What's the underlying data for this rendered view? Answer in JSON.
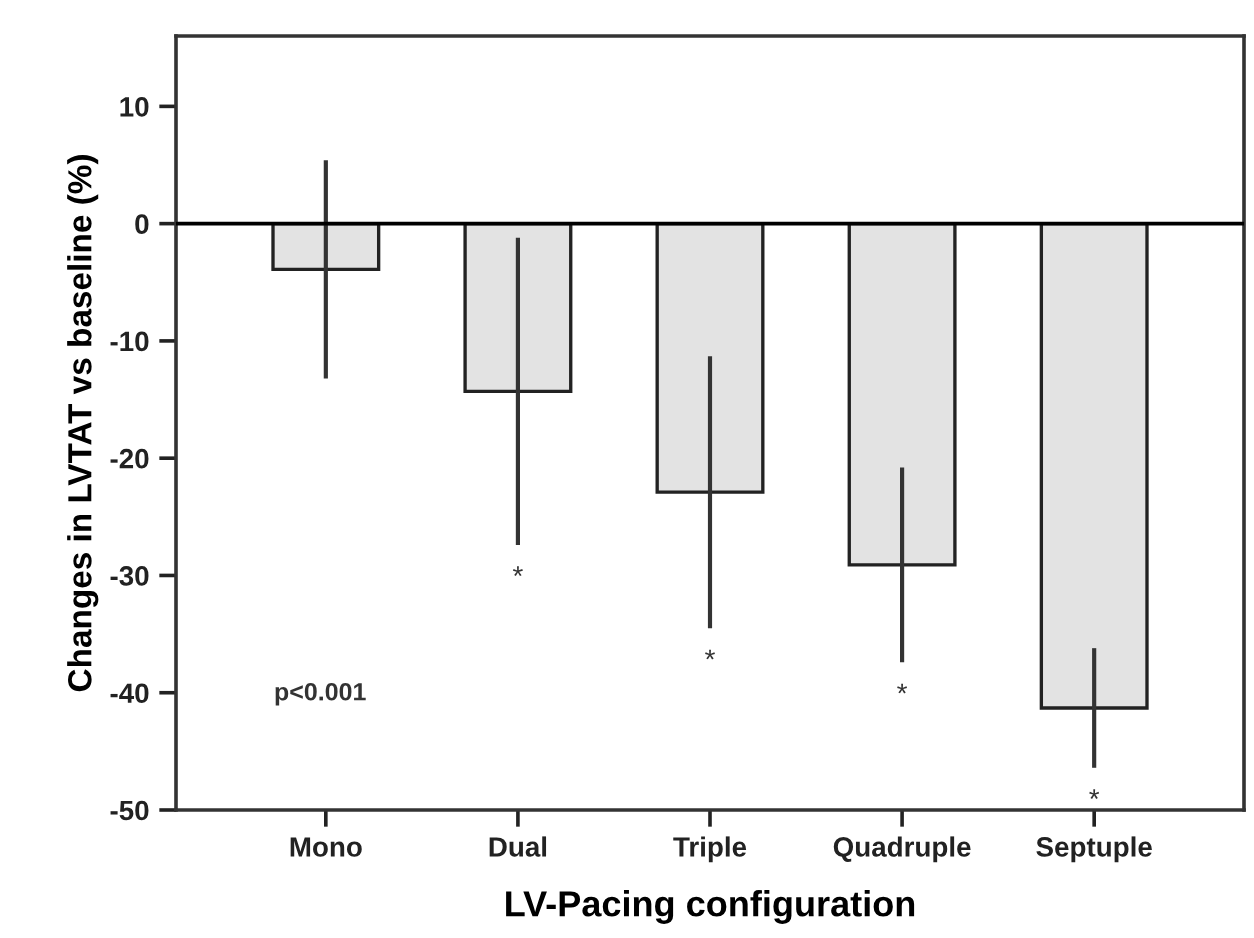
{
  "chart_data": {
    "type": "bar",
    "categories": [
      "Mono",
      "Dual",
      "Triple",
      "Quadruple",
      "Septuple"
    ],
    "values": [
      -3.9,
      -14.3,
      -22.9,
      -29.1,
      -41.3
    ],
    "errors": [
      9.3,
      13.1,
      11.6,
      8.3,
      5.1
    ],
    "color": "#e3e3e3",
    "xlabel": "LV-Pacing configuration",
    "ylabel": "Changes in LVTAT vs baseline (%)",
    "ylim": [
      -50,
      16
    ],
    "yticks": [
      -50,
      -40,
      -30,
      -20,
      -10,
      0,
      10
    ],
    "ref_lines": [
      {
        "axis": "y",
        "value": 0,
        "color": "#000000"
      }
    ],
    "annotations": [
      "p<0.001",
      "*",
      "*",
      "*",
      "*"
    ],
    "grid": false
  }
}
